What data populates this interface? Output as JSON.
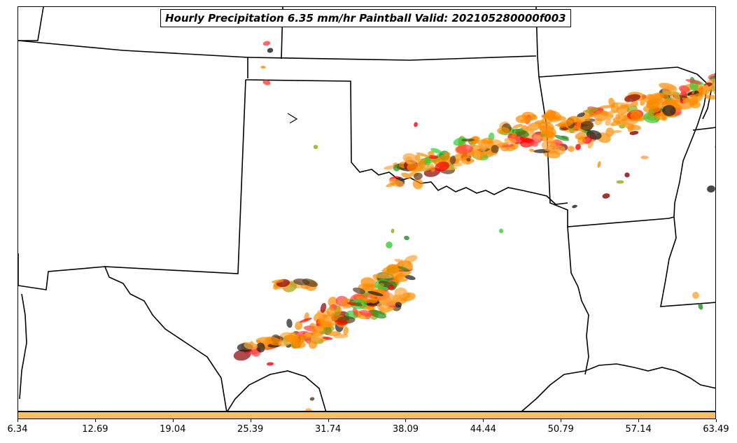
{
  "title": "Hourly Precipitation 6.35 mm/hr Paintball Valid: 202105280000f003",
  "colorbar": {
    "color": "#ffbe5e",
    "min": 6.34,
    "max": 63.49,
    "ticks": [
      "6.34",
      "12.69",
      "19.04",
      "25.39",
      "31.74",
      "38.09",
      "44.44",
      "50.79",
      "57.14",
      "63.49"
    ]
  },
  "member_colors": [
    "#ff8c00",
    "#ffa53a",
    "#ff0000",
    "#ff4040",
    "#8b0000",
    "#228b22",
    "#32cd32",
    "#9aa51a",
    "#1a1a1a",
    "#5a3a1a"
  ]
}
